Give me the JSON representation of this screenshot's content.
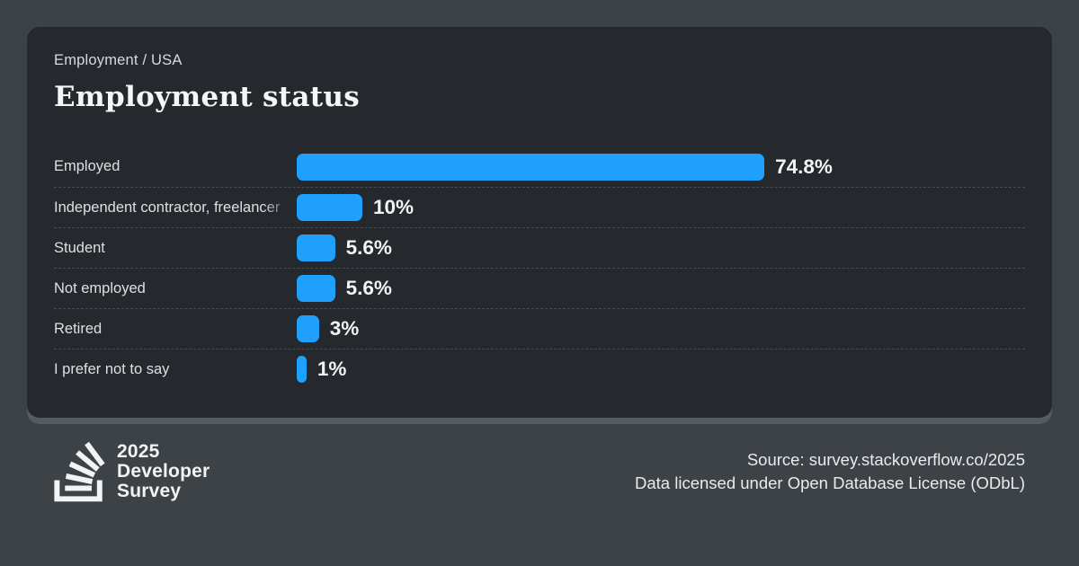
{
  "header": {
    "breadcrumb": "Employment / USA",
    "title": "Employment status"
  },
  "chart_data": {
    "type": "bar",
    "orientation": "horizontal",
    "title": "Employment status",
    "subtitle": "Employment / USA",
    "categories": [
      "Employed",
      "Independent contractor, freelancer",
      "Student",
      "Not employed",
      "Retired",
      "I prefer not to say"
    ],
    "values": [
      74.8,
      10,
      5.6,
      5.6,
      3,
      1
    ],
    "value_labels": [
      "74.8%",
      "10%",
      "5.6%",
      "5.6%",
      "3%",
      "1%"
    ],
    "xlim": [
      0,
      100
    ],
    "grid": false,
    "legend": false,
    "bar_color": "#1fa0fc"
  },
  "footer": {
    "brand_lines": [
      "2025",
      "Developer",
      "Survey"
    ],
    "logo_icon": "stackoverflow-logo-icon",
    "source_line1": "Source: survey.stackoverflow.co/2025",
    "source_line2": "Data licensed under Open Database License (ODbL)"
  },
  "colors": {
    "page_bg": "#3d4247",
    "card_bg": "#25282c",
    "card_shadow": "#565b62",
    "bar_blue": "#1fa0fc",
    "separator": "#474c52",
    "text_primary": "#f5f6f7",
    "text_secondary": "#dde0e3"
  }
}
